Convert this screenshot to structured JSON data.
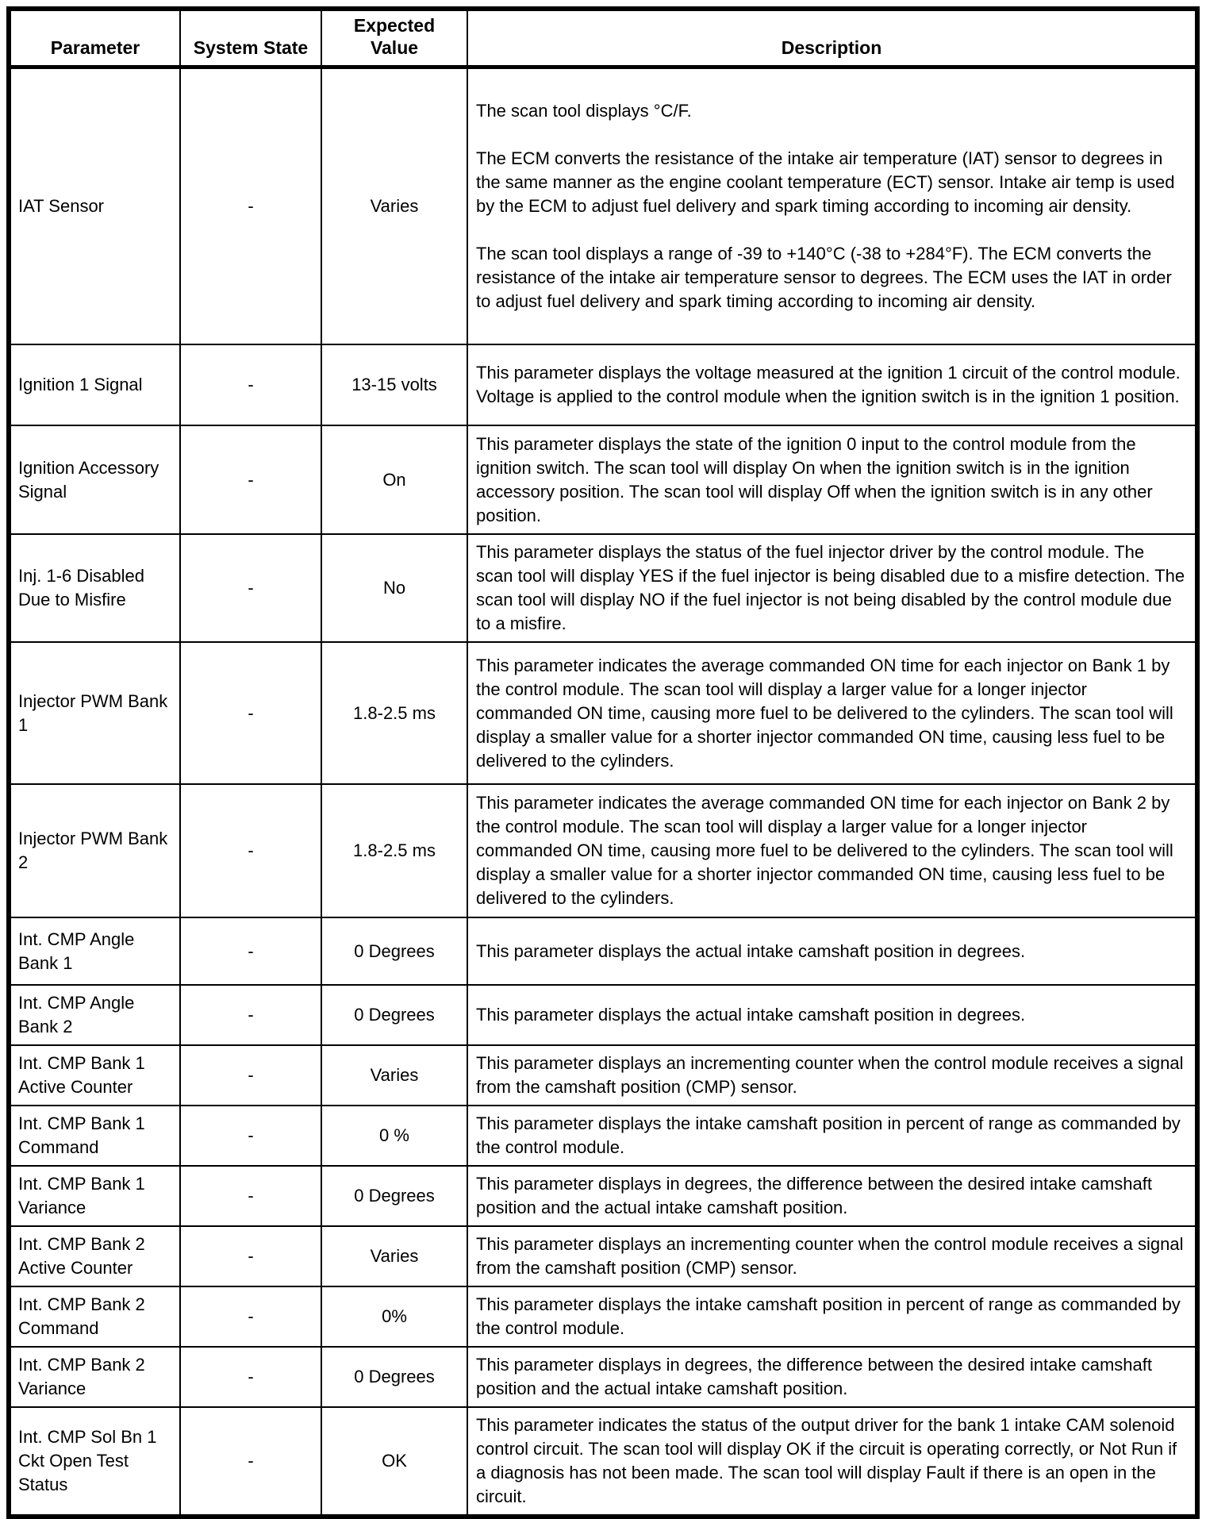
{
  "table": {
    "columns": [
      {
        "key": "parameter",
        "label": "Parameter"
      },
      {
        "key": "system_state",
        "label": "System State"
      },
      {
        "key": "expected_value",
        "label": "Expected Value"
      },
      {
        "key": "description",
        "label": "Description"
      }
    ],
    "rows": [
      {
        "parameter": "IAT Sensor",
        "system_state": "-",
        "expected_value": "Varies",
        "description": "The scan tool displays °C/F.\n\nThe ECM converts the resistance of the intake air temperature (IAT) sensor to degrees in the same manner as the engine coolant temperature (ECT) sensor. Intake air temp is used by the ECM to adjust fuel delivery and spark timing according to incoming air density.\n\nThe scan tool displays a range of -39 to +140°C (-38 to +284°F). The ECM converts the resistance of the intake air temperature sensor to degrees. The ECM uses the IAT in order to adjust fuel delivery and spark timing according to incoming air density."
      },
      {
        "parameter": "Ignition 1 Signal",
        "system_state": "-",
        "expected_value": "13-15 volts",
        "description": "This parameter displays the voltage measured at the ignition 1 circuit of the control module. Voltage is applied to the control module when the ignition switch is in the ignition 1 position."
      },
      {
        "parameter": "Ignition Accessory Signal",
        "system_state": "-",
        "expected_value": "On",
        "description": "This parameter displays the state of the ignition 0 input to the control module from the ignition switch. The scan tool will display On when the ignition switch is in the ignition accessory position. The scan tool will display Off when the ignition switch is in any other position."
      },
      {
        "parameter": "Inj. 1-6 Disabled Due to Misfire",
        "system_state": "-",
        "expected_value": "No",
        "description": "This parameter displays the status of the fuel injector driver by the control module. The scan tool will display YES if the fuel injector is being disabled due to a misfire detection. The scan tool will display NO if the fuel injector is not being disabled by the control module due to a misfire."
      },
      {
        "parameter": "Injector PWM Bank 1",
        "system_state": "-",
        "expected_value": "1.8-2.5 ms",
        "description": "This parameter indicates the average commanded ON time for each injector on Bank 1 by the control module. The scan tool will display a larger value for a longer injector commanded ON time, causing more fuel to be delivered to the cylinders. The scan tool will display a smaller value for a shorter injector commanded ON time, causing less fuel to be delivered to the cylinders."
      },
      {
        "parameter": "Injector PWM Bank 2",
        "system_state": "-",
        "expected_value": "1.8-2.5 ms",
        "description": "This parameter indicates the average commanded ON time for each injector on Bank 2 by the control module. The scan tool will display a larger value for a longer injector commanded ON time, causing more fuel to be delivered to the cylinders. The scan tool will display a smaller value for a shorter injector commanded ON time, causing less fuel to be delivered to the cylinders."
      },
      {
        "parameter": "Int. CMP Angle Bank 1",
        "system_state": "-",
        "expected_value": "0 Degrees",
        "description": "This parameter displays the actual intake camshaft position in degrees."
      },
      {
        "parameter": "Int. CMP Angle Bank 2",
        "system_state": "-",
        "expected_value": "0 Degrees",
        "description": "This parameter displays the actual intake camshaft position in degrees."
      },
      {
        "parameter": "Int. CMP Bank 1 Active Counter",
        "system_state": "-",
        "expected_value": "Varies",
        "description": "This parameter displays an incrementing counter when the control module receives a signal from the camshaft position (CMP) sensor."
      },
      {
        "parameter": "Int. CMP Bank 1 Command",
        "system_state": "-",
        "expected_value": "0 %",
        "description": "This parameter displays the intake camshaft position in percent of range as commanded by the control module."
      },
      {
        "parameter": "Int. CMP Bank 1 Variance",
        "system_state": "-",
        "expected_value": "0 Degrees",
        "description": "This parameter displays in degrees, the difference between the desired intake camshaft position and the actual intake camshaft position."
      },
      {
        "parameter": "Int. CMP Bank 2 Active Counter",
        "system_state": "-",
        "expected_value": "Varies",
        "description": "This parameter displays an incrementing counter when the control module receives a signal from the camshaft position (CMP) sensor."
      },
      {
        "parameter": "Int. CMP Bank 2 Command",
        "system_state": "-",
        "expected_value": "0%",
        "description": "This parameter displays the intake camshaft position in percent of range as commanded by the control module."
      },
      {
        "parameter": "Int. CMP Bank 2 Variance",
        "system_state": "-",
        "expected_value": "0 Degrees",
        "description": "This parameter displays in degrees, the difference between the desired intake camshaft position and the actual intake camshaft position."
      },
      {
        "parameter": "Int. CMP Sol Bn 1 Ckt Open Test Status",
        "system_state": "-",
        "expected_value": "OK",
        "description": "This parameter indicates the status of the output driver for the bank 1 intake CAM solenoid control circuit. The scan tool will display OK if the circuit is operating correctly, or Not Run if a diagnosis has not been made. The scan tool will display Fault if there is an open in the circuit."
      }
    ]
  }
}
